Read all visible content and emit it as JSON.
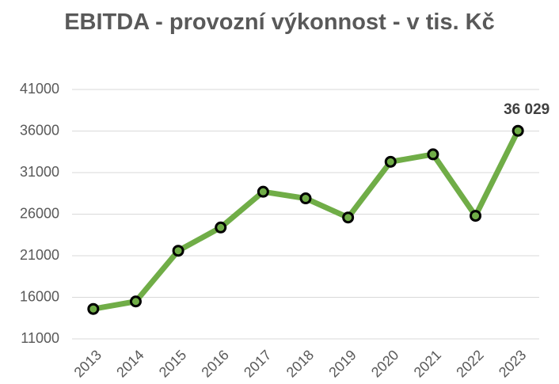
{
  "chart_data": {
    "type": "line",
    "title": "EBITDA - provozní výkonnost - v tis. Kč",
    "categories": [
      "2013",
      "2014",
      "2015",
      "2016",
      "2017",
      "2018",
      "2019",
      "2020",
      "2021",
      "2022",
      "2023"
    ],
    "series": [
      {
        "name": "EBITDA",
        "color": "#70ad47",
        "values": [
          14600,
          15500,
          21600,
          24400,
          28700,
          27900,
          25600,
          32300,
          33200,
          25800,
          36029
        ],
        "value_labels": [
          null,
          null,
          null,
          null,
          null,
          null,
          null,
          null,
          null,
          null,
          "36 029"
        ]
      }
    ],
    "ylim": [
      11000,
      41000
    ],
    "yticks": [
      11000,
      16000,
      21000,
      26000,
      31000,
      36000,
      41000
    ],
    "grid": true
  }
}
